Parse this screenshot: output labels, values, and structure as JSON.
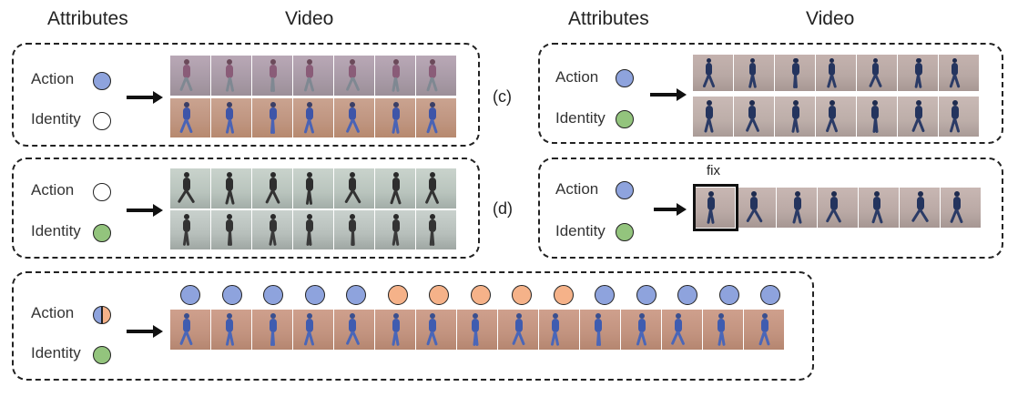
{
  "headers": {
    "left_attributes": "Attributes",
    "left_video": "Video",
    "right_attributes": "Attributes",
    "right_video": "Video"
  },
  "colors": {
    "action_blue": "#8ea3dd",
    "identity_green": "#93c47d",
    "orange": "#f5b289",
    "empty": "#ffffff"
  },
  "side_labels": {
    "c": "(c)",
    "d": "(d)"
  },
  "panels": [
    {
      "id": "a",
      "action_label": "Action",
      "identity_label": "Identity",
      "action_color": "#8ea3dd",
      "identity_color": "#ffffff"
    },
    {
      "id": "b",
      "action_label": "Action",
      "identity_label": "Identity",
      "action_color": "#ffffff",
      "identity_color": "#93c47d"
    },
    {
      "id": "c",
      "action_label": "Action",
      "identity_label": "Identity",
      "action_color": "#8ea3dd",
      "identity_color": "#93c47d"
    },
    {
      "id": "d",
      "action_label": "Action",
      "identity_label": "Identity",
      "action_color": "#8ea3dd",
      "identity_color": "#93c47d",
      "fix_label": "fix"
    },
    {
      "id": "e",
      "action_label": "Action",
      "identity_label": "Identity",
      "action_color": "split",
      "identity_color": "#93c47d"
    }
  ],
  "bottom_timeline": [
    "blue",
    "blue",
    "blue",
    "blue",
    "blue",
    "orange",
    "orange",
    "orange",
    "orange",
    "orange",
    "blue",
    "blue",
    "blue",
    "blue",
    "blue"
  ]
}
